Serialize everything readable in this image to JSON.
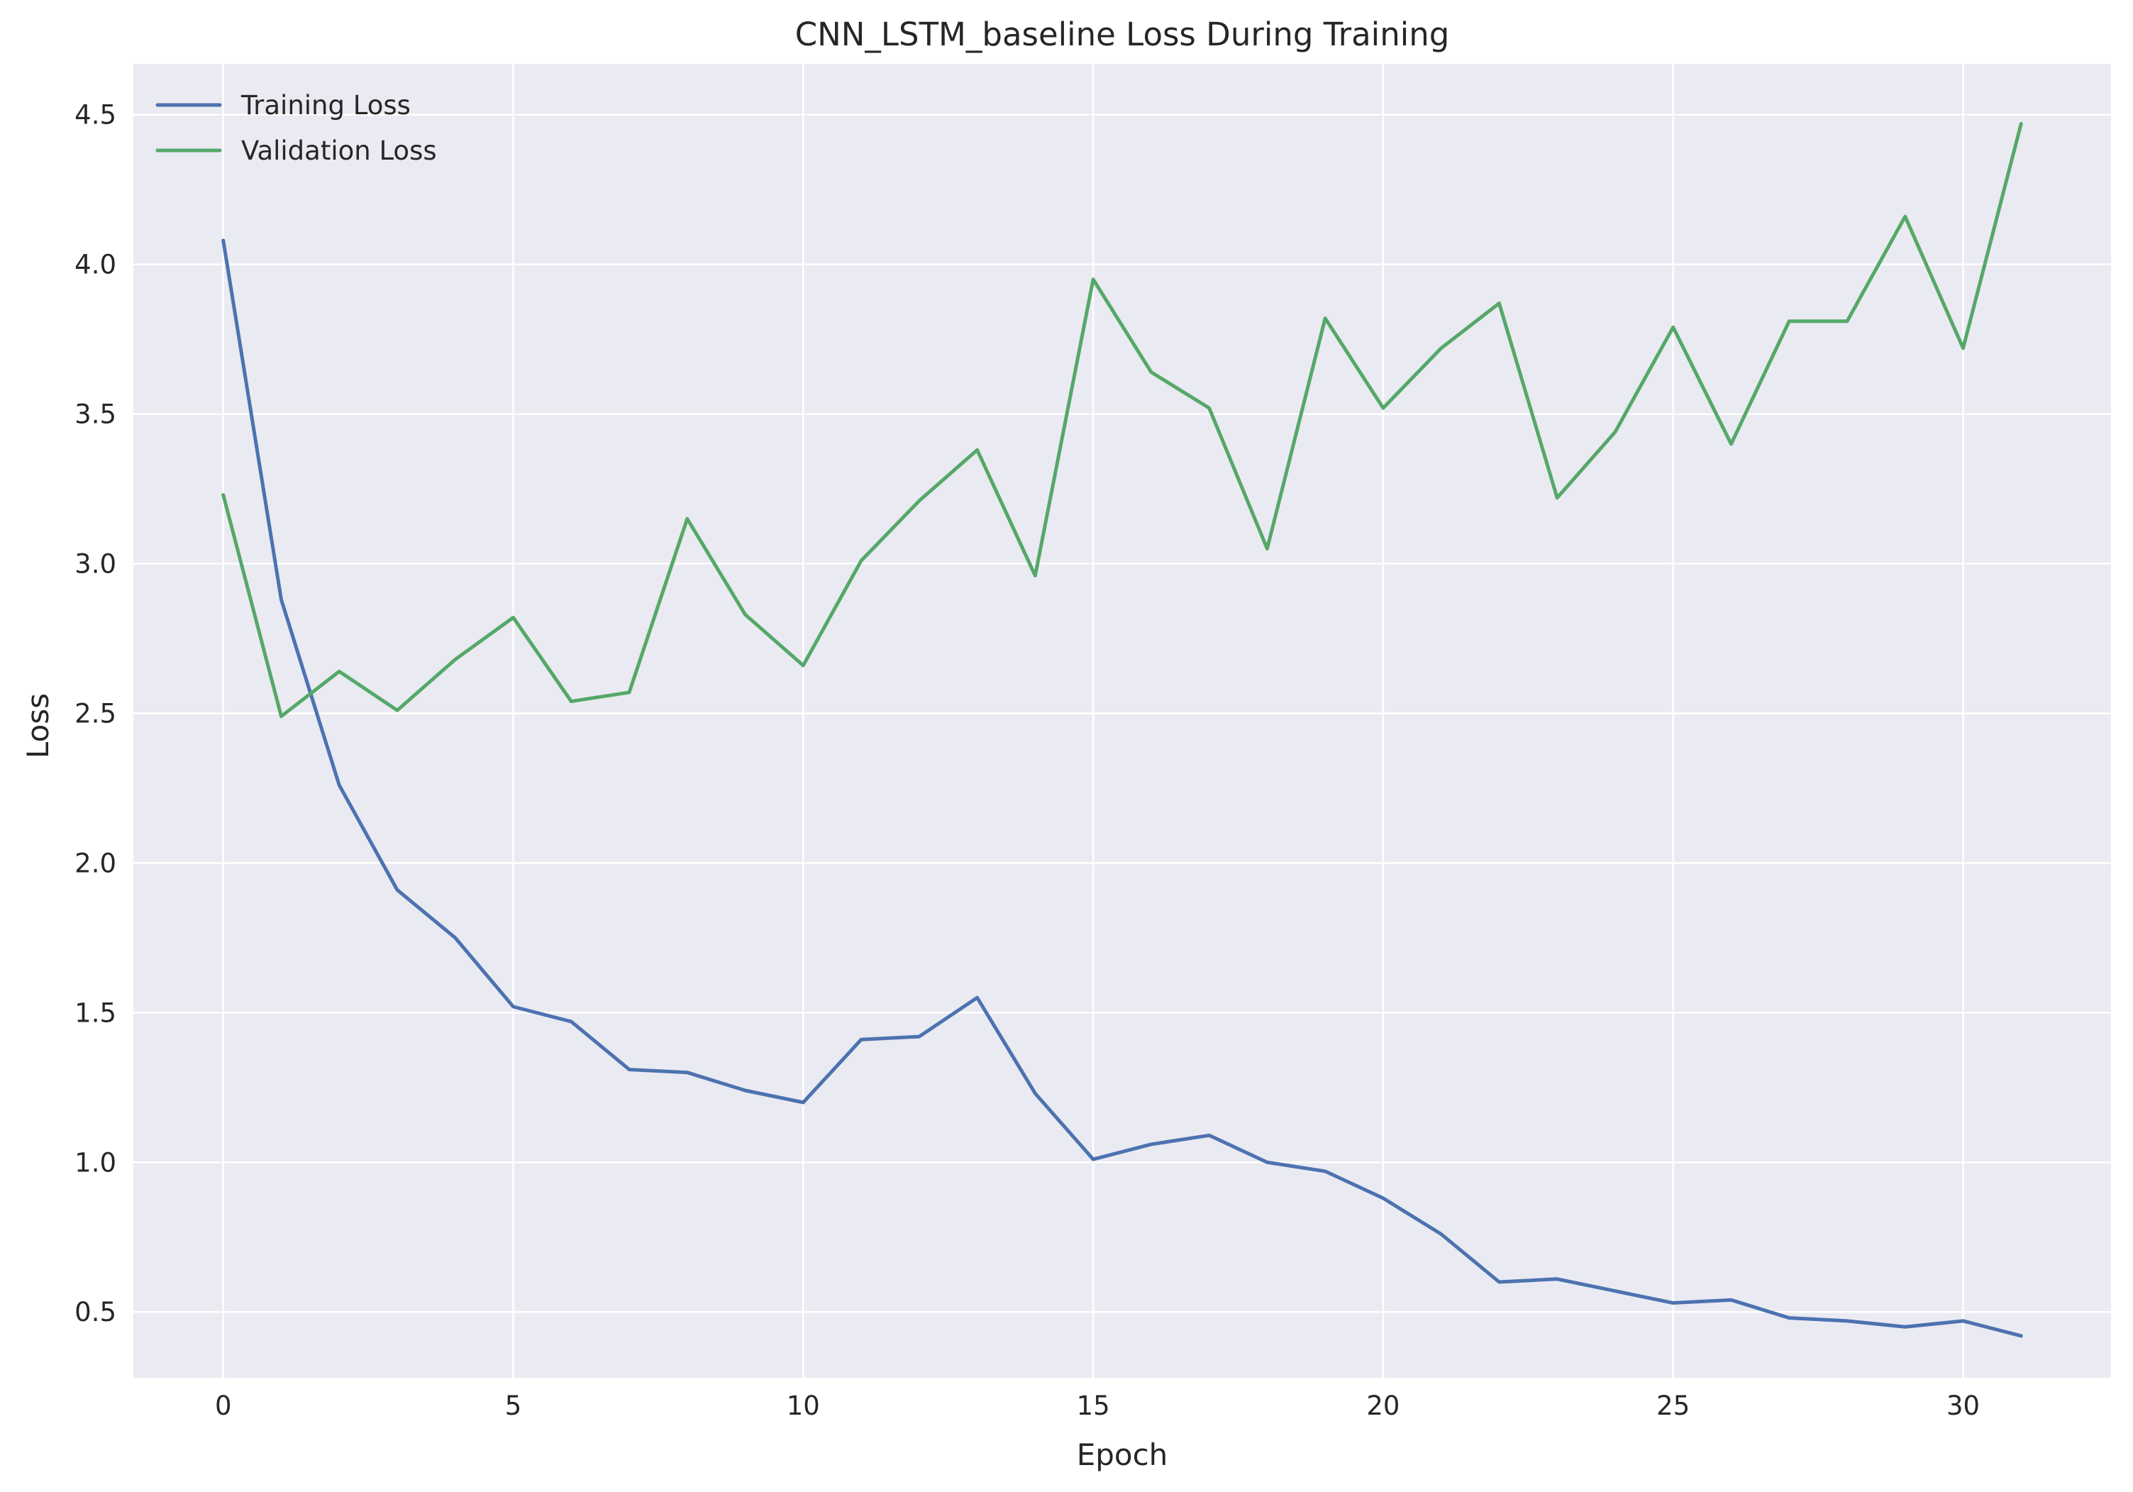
{
  "chart_data": {
    "type": "line",
    "title": "CNN_LSTM_baseline Loss During Training",
    "xlabel": "Epoch",
    "ylabel": "Loss",
    "xlim": [
      -1.55,
      32.55
    ],
    "ylim": [
      0.28,
      4.67
    ],
    "xticks": [
      0,
      5,
      10,
      15,
      20,
      25,
      30
    ],
    "yticks": [
      0.5,
      1.0,
      1.5,
      2.0,
      2.5,
      3.0,
      3.5,
      4.0,
      4.5
    ],
    "grid": true,
    "legend_position": "top-left",
    "x": [
      0,
      1,
      2,
      3,
      4,
      5,
      6,
      7,
      8,
      9,
      10,
      11,
      12,
      13,
      14,
      15,
      16,
      17,
      18,
      19,
      20,
      21,
      22,
      23,
      24,
      25,
      26,
      27,
      28,
      29,
      30,
      31
    ],
    "series": [
      {
        "name": "Training Loss",
        "color": "#4c72b0",
        "values": [
          4.08,
          2.88,
          2.26,
          1.91,
          1.75,
          1.52,
          1.47,
          1.31,
          1.3,
          1.24,
          1.2,
          1.41,
          1.42,
          1.55,
          1.23,
          1.01,
          1.06,
          1.09,
          1.0,
          0.97,
          0.88,
          0.76,
          0.6,
          0.61,
          0.57,
          0.53,
          0.54,
          0.48,
          0.47,
          0.45,
          0.47,
          0.42
        ]
      },
      {
        "name": "Validation Loss",
        "color": "#55a868",
        "values": [
          3.23,
          2.49,
          2.64,
          2.51,
          2.68,
          2.82,
          2.54,
          2.57,
          3.15,
          2.83,
          2.66,
          3.01,
          3.21,
          3.38,
          2.96,
          3.95,
          3.64,
          3.52,
          3.05,
          3.82,
          3.52,
          3.72,
          3.87,
          3.22,
          3.44,
          3.79,
          3.4,
          3.81,
          3.81,
          4.16,
          3.72,
          4.47
        ]
      }
    ]
  },
  "colors": {
    "plot_background": "#eaeaf2",
    "grid": "#ffffff",
    "text": "#262626"
  }
}
